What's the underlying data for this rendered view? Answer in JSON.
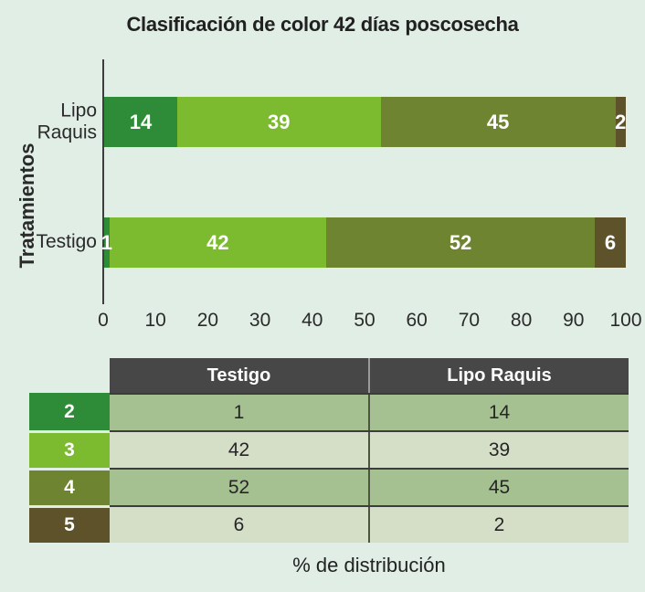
{
  "title": "Clasificación de color 42 días poscosecha",
  "colors": {
    "background": "#e0eee5",
    "axis": "#3d3d3d",
    "bar_label_text": "#ffffff",
    "table_header_bg": "#474747",
    "table_header_text": "#ffffff",
    "table_row_bg_dark": "#a5c091",
    "table_row_bg_light": "#d5dfc8",
    "class_2": "#2e8b37",
    "class_3": "#7cba2f",
    "class_4": "#6e8430",
    "class_5": "#5d5229"
  },
  "chart_data": {
    "type": "bar",
    "stacked": true,
    "orientation": "horizontal",
    "title": "Clasificación de color 42 días poscosecha",
    "xlabel": "% de distribución",
    "ylabel": "Tratamientos",
    "xlim": [
      0,
      100
    ],
    "xticks": [
      0,
      10,
      20,
      30,
      40,
      50,
      60,
      70,
      80,
      90,
      100
    ],
    "grid": false,
    "legend": "none",
    "categories": [
      "Lipo Raquis",
      "Testigo"
    ],
    "series": [
      {
        "name": "2",
        "color": "#2e8b37",
        "values": [
          14,
          1
        ]
      },
      {
        "name": "3",
        "color": "#7cba2f",
        "values": [
          39,
          42
        ]
      },
      {
        "name": "4",
        "color": "#6e8430",
        "values": [
          45,
          52
        ]
      },
      {
        "name": "5",
        "color": "#5d5229",
        "values": [
          2,
          6
        ]
      }
    ]
  },
  "table": {
    "column_headers": [
      "Testigo",
      "Lipo Raquis"
    ],
    "rows": [
      {
        "label": "2",
        "label_color": "#2e8b37",
        "bg": "#a5c091",
        "values": [
          "1",
          "14"
        ]
      },
      {
        "label": "3",
        "label_color": "#7cba2f",
        "bg": "#d5dfc8",
        "values": [
          "42",
          "39"
        ]
      },
      {
        "label": "4",
        "label_color": "#6e8430",
        "bg": "#a5c091",
        "values": [
          "52",
          "45"
        ]
      },
      {
        "label": "5",
        "label_color": "#5d5229",
        "bg": "#d5dfc8",
        "values": [
          "6",
          "2"
        ]
      }
    ]
  },
  "footer_label": "% de distribución"
}
